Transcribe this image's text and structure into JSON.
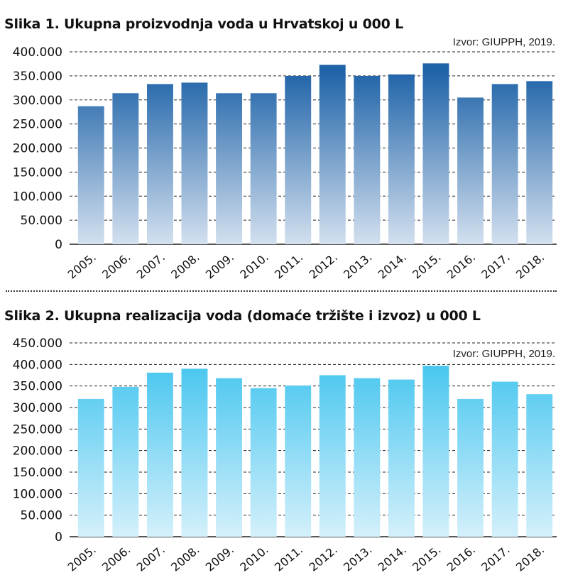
{
  "charts": [
    {
      "title": "Slika 1. Ukupna proizvodnja voda u Hrvatskoj u 000 L",
      "source": "Izvor: GIUPPH, 2019.",
      "color_top": "#1f63a8",
      "color_bottom": "#d3e0ef"
    },
    {
      "title": "Slika 2. Ukupna realizacija voda (domaće tržište i izvoz) u 000 L",
      "source": "Izvor: GIUPPH, 2019.",
      "color_top": "#47c6ef",
      "color_bottom": "#d4f0fb"
    }
  ],
  "chart_data": [
    {
      "type": "bar",
      "title": "Slika 1. Ukupna proizvodnja voda u Hrvatskoj u 000 L",
      "categories": [
        "2005.",
        "2006.",
        "2007.",
        "2008.",
        "2009.",
        "2010.",
        "2011.",
        "2012.",
        "2013.",
        "2014.",
        "2015.",
        "2016.",
        "2017.",
        "2018."
      ],
      "values": [
        287000,
        314000,
        333000,
        336000,
        314000,
        314000,
        350000,
        373000,
        350000,
        353000,
        376000,
        305000,
        333000,
        339000
      ],
      "ylim": [
        0,
        400000
      ],
      "yticks": [
        0,
        50000,
        100000,
        150000,
        200000,
        250000,
        300000,
        350000,
        400000
      ],
      "ytick_labels": [
        "0",
        "50.000",
        "100.000",
        "150.000",
        "200.000",
        "250.000",
        "300.000",
        "350.000",
        "400.000"
      ],
      "grid": "dashed horizontal",
      "xlabel": "",
      "ylabel": ""
    },
    {
      "type": "bar",
      "title": "Slika 2. Ukupna realizacija voda (domaće tržište i izvoz) u 000 L",
      "categories": [
        "2005.",
        "2006.",
        "2007.",
        "2008.",
        "2009.",
        "2010.",
        "2011.",
        "2012.",
        "2013.",
        "2014.",
        "2015.",
        "2016.",
        "2017.",
        "2018."
      ],
      "values": [
        320000,
        348000,
        381000,
        390000,
        368000,
        345000,
        351000,
        375000,
        368000,
        365000,
        397000,
        320000,
        360000,
        331000
      ],
      "ylim": [
        0,
        450000
      ],
      "yticks": [
        0,
        50000,
        100000,
        150000,
        200000,
        250000,
        300000,
        350000,
        400000,
        450000
      ],
      "ytick_labels": [
        "0",
        "50.000",
        "100.000",
        "150.000",
        "200.000",
        "250.000",
        "300.000",
        "350.000",
        "400.000",
        "450.000"
      ],
      "grid": "dashed horizontal",
      "xlabel": "",
      "ylabel": ""
    }
  ]
}
